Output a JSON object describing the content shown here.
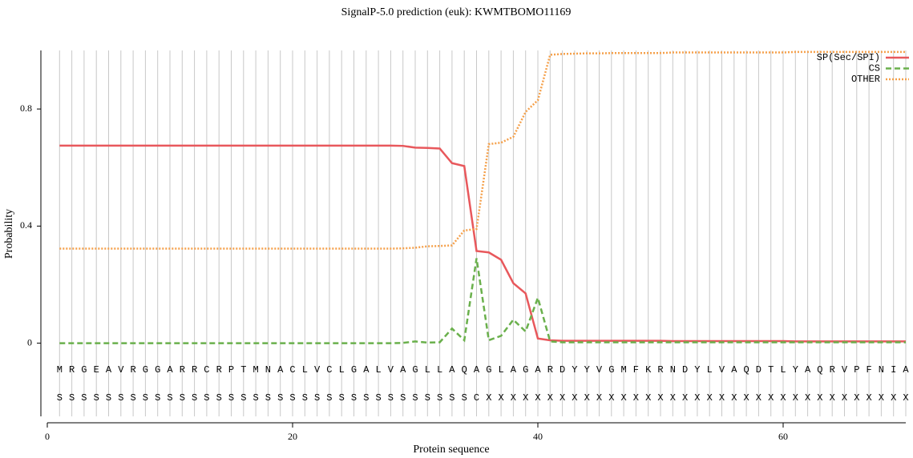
{
  "chart_data": {
    "type": "line",
    "title": "SignalP-5.0 prediction (euk):  KWMTBOMO11169",
    "x_label": "Protein sequence",
    "y_label": "Probability",
    "xlim": [
      0,
      70
    ],
    "xticks": [
      0,
      20,
      40,
      60
    ],
    "ylim": [
      -0.25,
      1.0
    ],
    "yticks": [
      0,
      0.4,
      0.8
    ],
    "x": [
      1,
      2,
      3,
      4,
      5,
      6,
      7,
      8,
      9,
      10,
      11,
      12,
      13,
      14,
      15,
      16,
      17,
      18,
      19,
      20,
      21,
      22,
      23,
      24,
      25,
      26,
      27,
      28,
      29,
      30,
      31,
      32,
      33,
      34,
      35,
      36,
      37,
      38,
      39,
      40,
      41,
      42,
      43,
      44,
      45,
      46,
      47,
      48,
      49,
      50,
      51,
      52,
      53,
      54,
      55,
      56,
      57,
      58,
      59,
      60,
      61,
      62,
      63,
      64,
      65,
      66,
      67,
      68,
      69,
      70
    ],
    "residues": [
      "M",
      "R",
      "G",
      "E",
      "A",
      "V",
      "R",
      "G",
      "G",
      "A",
      "R",
      "R",
      "C",
      "R",
      "P",
      "T",
      "M",
      "N",
      "A",
      "C",
      "L",
      "V",
      "C",
      "L",
      "G",
      "A",
      "L",
      "V",
      "A",
      "G",
      "L",
      "L",
      "A",
      "Q",
      "A",
      "G",
      "L",
      "A",
      "G",
      "A",
      "R",
      "D",
      "Y",
      "Y",
      "V",
      "G",
      "M",
      "F",
      "K",
      "R",
      "N",
      "D",
      "Y",
      "L",
      "V",
      "A",
      "Q",
      "D",
      "T",
      "L",
      "Y",
      "A",
      "Q",
      "R",
      "V",
      "P",
      "F",
      "N",
      "I",
      "A"
    ],
    "annotations": [
      "S",
      "S",
      "S",
      "S",
      "S",
      "S",
      "S",
      "S",
      "S",
      "S",
      "S",
      "S",
      "S",
      "S",
      "S",
      "S",
      "S",
      "S",
      "S",
      "S",
      "S",
      "S",
      "S",
      "S",
      "S",
      "S",
      "S",
      "S",
      "S",
      "S",
      "S",
      "S",
      "S",
      "S",
      "C",
      "X",
      "X",
      "X",
      "X",
      "X",
      "X",
      "X",
      "X",
      "X",
      "X",
      "X",
      "X",
      "X",
      "X",
      "X",
      "X",
      "X",
      "X",
      "X",
      "X",
      "X",
      "X",
      "X",
      "X",
      "X",
      "X",
      "X",
      "X",
      "X",
      "X",
      "X",
      "X",
      "X",
      "X",
      "X"
    ],
    "legend": "upper right",
    "series": [
      {
        "name": "SP(Sec/SPI)",
        "color": "#e8585c",
        "style": "solid",
        "values": [
          0.675,
          0.675,
          0.675,
          0.675,
          0.675,
          0.675,
          0.675,
          0.675,
          0.675,
          0.675,
          0.675,
          0.675,
          0.675,
          0.675,
          0.675,
          0.675,
          0.675,
          0.675,
          0.675,
          0.675,
          0.675,
          0.675,
          0.675,
          0.675,
          0.675,
          0.675,
          0.675,
          0.675,
          0.674,
          0.668,
          0.667,
          0.665,
          0.615,
          0.605,
          0.315,
          0.31,
          0.285,
          0.205,
          0.17,
          0.016,
          0.01,
          0.008,
          0.008,
          0.008,
          0.008,
          0.008,
          0.008,
          0.008,
          0.008,
          0.008,
          0.007,
          0.007,
          0.007,
          0.007,
          0.007,
          0.007,
          0.007,
          0.007,
          0.007,
          0.007,
          0.006,
          0.006,
          0.006,
          0.006,
          0.006,
          0.006,
          0.006,
          0.006,
          0.006,
          0.006
        ]
      },
      {
        "name": "CS",
        "color": "#6ab04c",
        "style": "dashed",
        "values": [
          0,
          0,
          0,
          0,
          0,
          0,
          0,
          0,
          0,
          0,
          0,
          0,
          0,
          0,
          0,
          0,
          0,
          0,
          0,
          0,
          0,
          0,
          0,
          0,
          0,
          0,
          0,
          0,
          0.001,
          0.006,
          0.002,
          0.003,
          0.05,
          0.01,
          0.29,
          0.01,
          0.025,
          0.08,
          0.04,
          0.155,
          0.006,
          0.003,
          0.003,
          0.003,
          0.003,
          0.003,
          0.003,
          0.003,
          0.003,
          0.003,
          0.003,
          0.003,
          0.003,
          0.003,
          0.003,
          0.003,
          0.003,
          0.003,
          0.003,
          0.003,
          0.003,
          0.003,
          0.003,
          0.003,
          0.003,
          0.003,
          0.003,
          0.003,
          0.003,
          0.003
        ]
      },
      {
        "name": "OTHER",
        "color": "#f5a04a",
        "style": "dotted",
        "values": [
          0.323,
          0.323,
          0.323,
          0.323,
          0.323,
          0.323,
          0.323,
          0.323,
          0.323,
          0.323,
          0.323,
          0.323,
          0.323,
          0.323,
          0.323,
          0.323,
          0.323,
          0.323,
          0.323,
          0.323,
          0.323,
          0.323,
          0.323,
          0.323,
          0.323,
          0.323,
          0.323,
          0.323,
          0.324,
          0.326,
          0.331,
          0.332,
          0.334,
          0.385,
          0.39,
          0.68,
          0.685,
          0.705,
          0.79,
          0.83,
          0.985,
          0.988,
          0.989,
          0.99,
          0.99,
          0.991,
          0.991,
          0.991,
          0.991,
          0.991,
          0.993,
          0.993,
          0.993,
          0.993,
          0.993,
          0.993,
          0.993,
          0.993,
          0.993,
          0.993,
          0.995,
          0.995,
          0.995,
          0.995,
          0.995,
          0.995,
          0.995,
          0.995,
          0.995,
          0.995
        ]
      }
    ]
  }
}
